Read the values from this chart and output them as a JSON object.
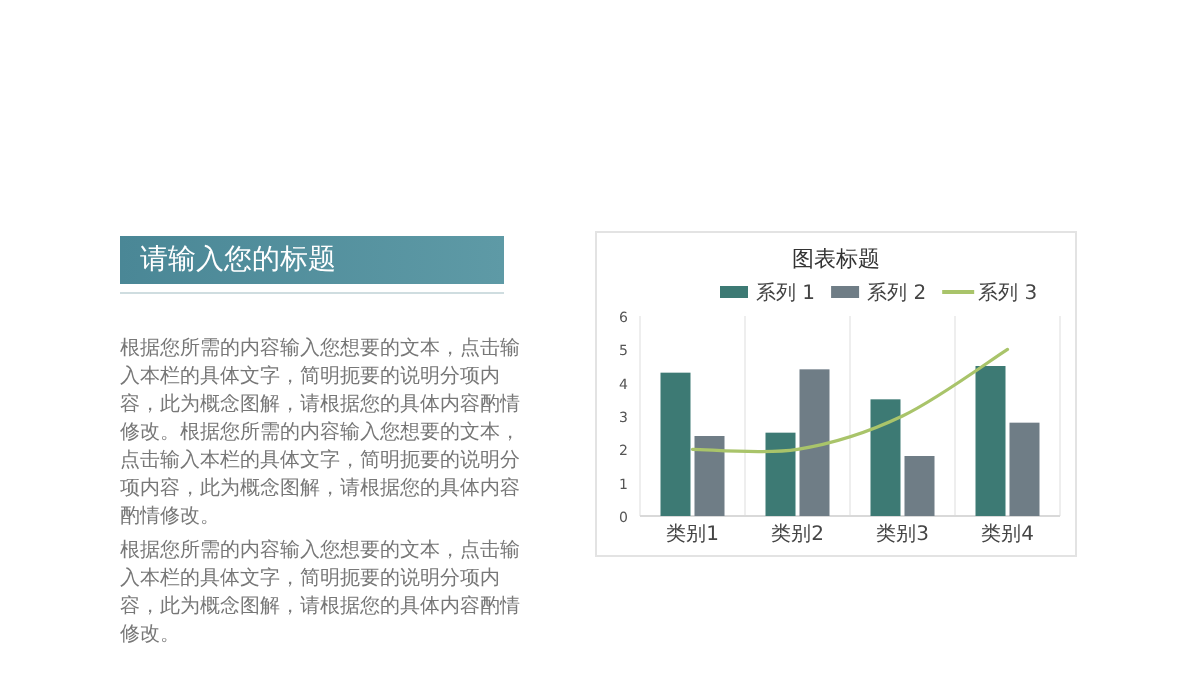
{
  "chart_data": {
    "type": "bar",
    "title": "图表标题",
    "categories": [
      "类别1",
      "类别2",
      "类别3",
      "类别4"
    ],
    "series": [
      {
        "name": "系列 1",
        "color": "#3d7a74",
        "values": [
          4.3,
          2.5,
          3.5,
          4.5
        ]
      },
      {
        "name": "系列 2",
        "color": "#6f7d86",
        "values": [
          2.4,
          4.4,
          1.8,
          2.8
        ]
      },
      {
        "name": "系列 3",
        "color": "#a9c46a",
        "type": "line",
        "values": [
          2,
          2,
          3,
          5
        ]
      }
    ],
    "ylim": [
      0,
      6
    ],
    "yticks": [
      0,
      1,
      2,
      3,
      4,
      5,
      6
    ],
    "grid": "x",
    "legend": "top",
    "annotations": [
      "请输入您的标题",
      "根据您所需的内容输入您想要的文本，点击输入本栏的具体文字，简明扼要的说明分项内容，此为概念图解，请根据您的具体内容酌情修改。根据您所需的内容输入您想要的文本，点击输入本栏的具体文字，简明扼要的说明分项内容，此为概念图解，请根据您的具体内容酌情修改。",
      "根据您所需的内容输入您想要的文本，点击输入本栏的具体文字，简明扼要的说明分项内容，此为概念图解，请根据您的具体内容酌情修改。"
    ]
  }
}
